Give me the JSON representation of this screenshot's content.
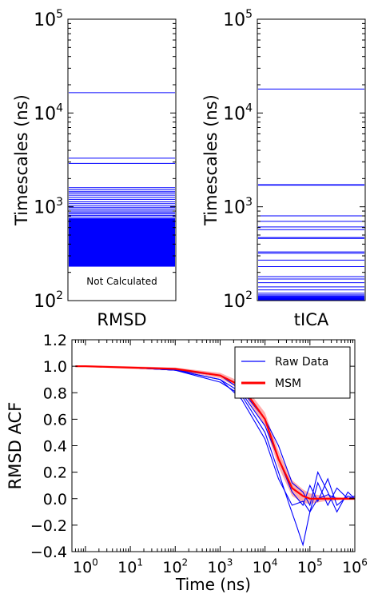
{
  "colors": {
    "blue": "#0000ff",
    "red": "#ff0000",
    "red_band": "#ff6a6a",
    "axis": "#000000"
  },
  "chart_data": [
    {
      "type": "timescale-spectrum",
      "panel": "top-left",
      "xlabel": "RMSD",
      "ylabel": "Timescales (ns)",
      "yscale": "log",
      "ylim": [
        100,
        100000
      ],
      "ytick_values": [
        100,
        1000,
        10000,
        100000
      ],
      "ytick_labels": [
        {
          "base": "10",
          "exp": "2"
        },
        {
          "base": "10",
          "exp": "3"
        },
        {
          "base": "10",
          "exp": "4"
        },
        {
          "base": "10",
          "exp": "5"
        }
      ],
      "annotation": "Not Calculated",
      "timescales": [
        16500,
        3300,
        2900,
        1600,
        1520,
        1450,
        1400,
        1330,
        1260,
        1200,
        1130,
        1080,
        1020,
        980,
        940,
        900,
        870,
        840,
        810,
        780,
        750
      ],
      "dense_band": {
        "from": 230,
        "to": 750
      },
      "line_color": "blue"
    },
    {
      "type": "timescale-spectrum",
      "panel": "top-right",
      "xlabel": "tICA",
      "ylabel": "Timescales (ns)",
      "yscale": "log",
      "ylim": [
        100,
        100000
      ],
      "ytick_values": [
        100,
        1000,
        10000,
        100000
      ],
      "ytick_labels": [
        {
          "base": "10",
          "exp": "2"
        },
        {
          "base": "10",
          "exp": "3"
        },
        {
          "base": "10",
          "exp": "4"
        },
        {
          "base": "10",
          "exp": "5"
        }
      ],
      "timescales": [
        18000,
        1720,
        1700,
        800,
        700,
        610,
        570,
        470,
        460,
        330,
        320,
        270,
        230,
        180,
        170,
        155,
        140,
        130,
        120,
        115,
        112,
        110,
        108,
        106,
        104,
        102
      ],
      "line_color": "blue"
    },
    {
      "type": "line",
      "panel": "bottom",
      "xlabel": "Time (ns)",
      "ylabel": "RMSD ACF",
      "xscale": "log",
      "xlim": [
        0.5,
        1000000
      ],
      "ylim": [
        -0.4,
        1.2
      ],
      "xtick_values": [
        1,
        10,
        100,
        1000,
        10000,
        100000,
        1000000
      ],
      "xtick_labels": [
        {
          "base": "10",
          "exp": "0"
        },
        {
          "base": "10",
          "exp": "1"
        },
        {
          "base": "10",
          "exp": "2"
        },
        {
          "base": "10",
          "exp": "3"
        },
        {
          "base": "10",
          "exp": "4"
        },
        {
          "base": "10",
          "exp": "5"
        },
        {
          "base": "10",
          "exp": "6"
        }
      ],
      "ytick_values": [
        -0.4,
        -0.2,
        0.0,
        0.2,
        0.4,
        0.6,
        0.8,
        1.0,
        1.2
      ],
      "ytick_labels": [
        "−0.4",
        "−0.2",
        "0.0",
        "0.2",
        "0.4",
        "0.6",
        "0.8",
        "1.0",
        "1.2"
      ],
      "legend": {
        "placement": "top-right",
        "entries": [
          {
            "label": "Raw Data",
            "color": "blue"
          },
          {
            "label": "MSM",
            "color": "red"
          }
        ]
      },
      "series": [
        {
          "name": "Raw Data",
          "color": "blue",
          "lines": [
            {
              "x": [
                0.6,
                1,
                10,
                100,
                1000,
                3000,
                10000,
                20000,
                35000,
                50000,
                70000,
                100000,
                150000,
                250000,
                400000,
                700000,
                1000000
              ],
              "y": [
                1.0,
                1.0,
                0.99,
                0.97,
                0.88,
                0.78,
                0.5,
                0.2,
                -0.05,
                -0.2,
                -0.35,
                -0.1,
                0.12,
                -0.05,
                0.08,
                0.0,
                0.02
              ]
            },
            {
              "x": [
                0.6,
                1,
                10,
                100,
                1000,
                3000,
                10000,
                20000,
                40000,
                70000,
                100000,
                150000,
                250000,
                400000,
                700000,
                1000000
              ],
              "y": [
                1.0,
                1.0,
                0.99,
                0.97,
                0.9,
                0.8,
                0.55,
                0.3,
                0.05,
                -0.05,
                0.1,
                -0.02,
                0.15,
                -0.05,
                0.02,
                0.0
              ]
            },
            {
              "x": [
                0.6,
                1,
                10,
                100,
                1000,
                3000,
                10000,
                20000,
                40000,
                70000,
                100000,
                150000,
                250000,
                400000,
                700000,
                1000000
              ],
              "y": [
                1.0,
                1.0,
                0.99,
                0.97,
                0.93,
                0.82,
                0.6,
                0.4,
                0.12,
                0.05,
                -0.05,
                0.2,
                0.05,
                -0.1,
                0.05,
                0.0
              ]
            },
            {
              "x": [
                0.6,
                1,
                10,
                100,
                1000,
                3000,
                10000,
                20000,
                40000,
                70000,
                100000,
                150000,
                250000,
                400000,
                700000,
                1000000
              ],
              "y": [
                1.0,
                1.0,
                0.99,
                0.97,
                0.9,
                0.75,
                0.45,
                0.15,
                -0.05,
                -0.02,
                -0.1,
                0.0,
                0.03,
                0.0,
                0.0,
                0.0
              ]
            }
          ]
        },
        {
          "name": "MSM",
          "color": "red",
          "x": [
            0.6,
            1,
            10,
            100,
            1000,
            3000,
            10000,
            20000,
            40000,
            70000,
            100000,
            200000,
            500000,
            1000000
          ],
          "y": [
            1.0,
            1.0,
            0.99,
            0.98,
            0.93,
            0.85,
            0.6,
            0.3,
            0.08,
            0.02,
            0.0,
            0.0,
            0.0,
            0.0
          ],
          "band_half_width": [
            0.005,
            0.005,
            0.01,
            0.01,
            0.02,
            0.03,
            0.05,
            0.06,
            0.06,
            0.05,
            0.04,
            0.02,
            0.01,
            0.01
          ]
        }
      ]
    }
  ]
}
